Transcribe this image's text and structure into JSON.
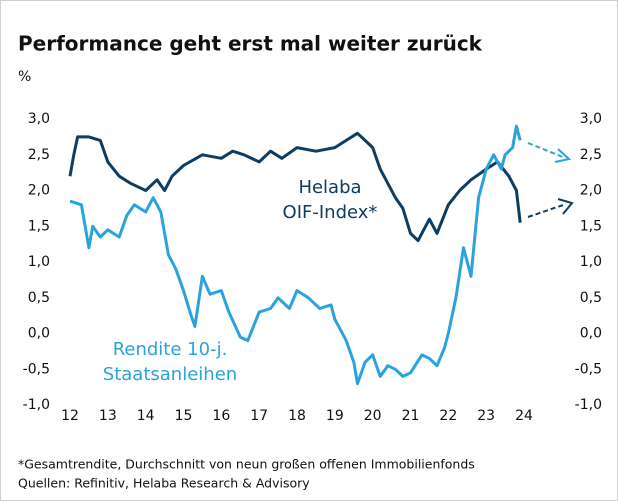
{
  "chart_data": {
    "type": "line",
    "title": "Performance geht erst mal weiter zurück",
    "y_label": "%",
    "annotations": [
      "Helaba",
      "OIF-Index*",
      "Rendite 10-j.",
      "Staatsanleihen"
    ],
    "footnotes": [
      "*Gesamtrendite, Durchschnitt von neun großen offenen Immobilienfonds",
      "Quellen: Refinitiv, Helaba Research & Advisory"
    ],
    "xlim": [
      12,
      24
    ],
    "xticks": [
      12,
      13,
      14,
      15,
      16,
      17,
      18,
      19,
      20,
      21,
      22,
      23,
      24
    ],
    "ylim": [
      -1,
      3
    ],
    "yticks": [
      {
        "value": -1,
        "label": "-1,0"
      },
      {
        "value": -0.5,
        "label": "-0,5"
      },
      {
        "value": 0,
        "label": "0,0"
      },
      {
        "value": 0.5,
        "label": "0,5"
      },
      {
        "value": 1,
        "label": "1,0"
      },
      {
        "value": 1.5,
        "label": "1,5"
      },
      {
        "value": 2,
        "label": "2,0"
      },
      {
        "value": 2.5,
        "label": "2,5"
      },
      {
        "value": 3,
        "label": "3,0"
      }
    ],
    "y2lim": [
      -1,
      3
    ],
    "y2ticks": [
      {
        "value": -1,
        "label": "-1,0"
      },
      {
        "value": -0.5,
        "label": "-0,5"
      },
      {
        "value": 0,
        "label": "0,0"
      },
      {
        "value": 0.5,
        "label": "0,5"
      },
      {
        "value": 1,
        "label": "1,0"
      },
      {
        "value": 1.5,
        "label": "1,5"
      },
      {
        "value": 2,
        "label": "2,0"
      },
      {
        "value": 2.5,
        "label": "2,5"
      },
      {
        "value": 3,
        "label": "3,0"
      }
    ],
    "series": [
      {
        "name": "Helaba OIF-Index*",
        "color": "#0e3d63",
        "x": [
          12.0,
          12.1,
          12.2,
          12.5,
          12.8,
          13.0,
          13.3,
          13.6,
          14.0,
          14.3,
          14.5,
          14.7,
          15.0,
          15.5,
          16.0,
          16.3,
          16.6,
          17.0,
          17.3,
          17.6,
          18.0,
          18.5,
          19.0,
          19.3,
          19.6,
          19.8,
          20.0,
          20.2,
          20.4,
          20.6,
          20.8,
          21.0,
          21.2,
          21.5,
          21.7,
          22.0,
          22.3,
          22.6,
          23.0,
          23.3,
          23.6,
          23.8,
          23.9
        ],
        "values": [
          2.2,
          2.5,
          2.75,
          2.75,
          2.7,
          2.4,
          2.2,
          2.1,
          2.0,
          2.15,
          2.0,
          2.2,
          2.35,
          2.5,
          2.45,
          2.55,
          2.5,
          2.4,
          2.55,
          2.45,
          2.6,
          2.55,
          2.6,
          2.7,
          2.8,
          2.7,
          2.6,
          2.3,
          2.1,
          1.9,
          1.75,
          1.4,
          1.3,
          1.6,
          1.4,
          1.8,
          2.0,
          2.15,
          2.3,
          2.4,
          2.2,
          2.0,
          1.55
        ]
      },
      {
        "name": "Rendite 10-j. Staatsanleihen",
        "color": "#2aa3dc",
        "x": [
          12.0,
          12.3,
          12.5,
          12.6,
          12.8,
          13.0,
          13.3,
          13.5,
          13.7,
          14.0,
          14.2,
          14.4,
          14.6,
          14.8,
          15.0,
          15.2,
          15.3,
          15.5,
          15.7,
          16.0,
          16.2,
          16.5,
          16.7,
          17.0,
          17.3,
          17.5,
          17.8,
          18.0,
          18.3,
          18.6,
          18.9,
          19.0,
          19.3,
          19.5,
          19.6,
          19.8,
          20.0,
          20.2,
          20.4,
          20.6,
          20.8,
          21.0,
          21.3,
          21.5,
          21.7,
          21.9,
          22.0,
          22.2,
          22.4,
          22.6,
          22.8,
          23.0,
          23.2,
          23.4,
          23.5,
          23.7,
          23.8,
          23.9
        ],
        "values": [
          1.85,
          1.8,
          1.2,
          1.5,
          1.35,
          1.45,
          1.35,
          1.65,
          1.8,
          1.7,
          1.9,
          1.7,
          1.1,
          0.9,
          0.6,
          0.25,
          0.1,
          0.8,
          0.55,
          0.6,
          0.3,
          -0.05,
          -0.1,
          0.3,
          0.35,
          0.5,
          0.35,
          0.6,
          0.5,
          0.35,
          0.4,
          0.2,
          -0.1,
          -0.4,
          -0.7,
          -0.4,
          -0.3,
          -0.6,
          -0.45,
          -0.5,
          -0.6,
          -0.55,
          -0.3,
          -0.35,
          -0.45,
          -0.2,
          0.0,
          0.5,
          1.2,
          0.8,
          1.9,
          2.3,
          2.5,
          2.3,
          2.5,
          2.6,
          2.9,
          2.7
        ]
      }
    ]
  }
}
